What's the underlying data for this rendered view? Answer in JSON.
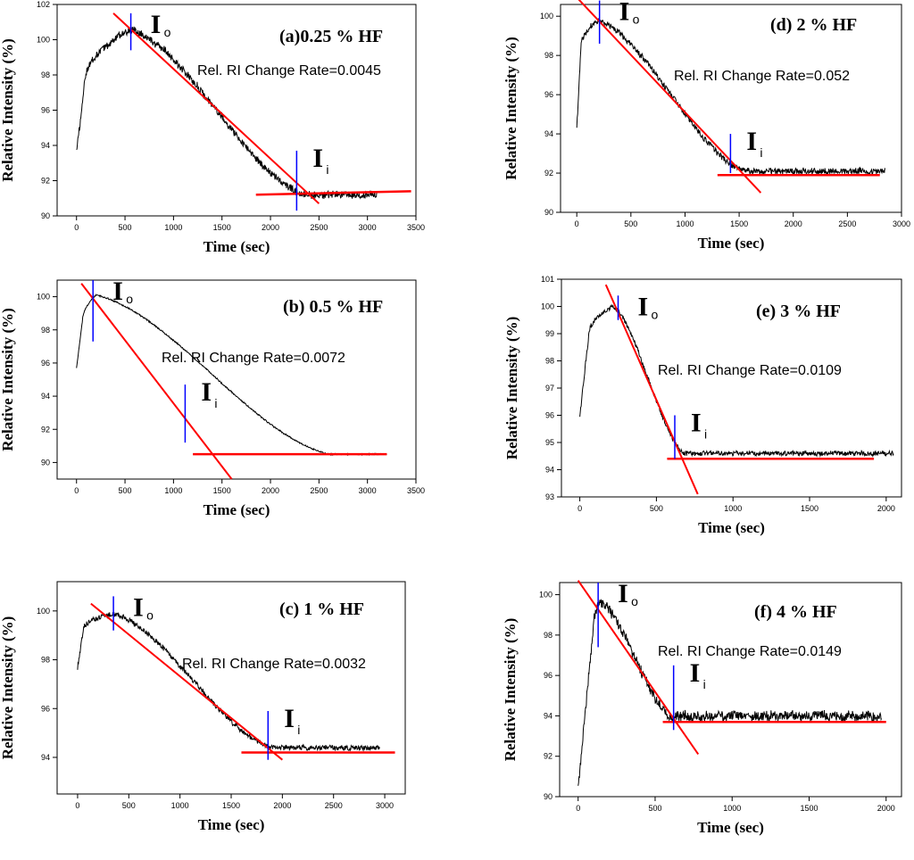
{
  "figure": {
    "xlabel": "Time (sec)",
    "ylabel": "Relative Intensity (%)",
    "rate_prefix": "Rel. RI Change Rate=",
    "marker_io": {
      "main": "I",
      "sub": "o"
    },
    "marker_ii": {
      "main": "I",
      "sub": "i"
    }
  },
  "colors": {
    "data": "#000000",
    "fit": "#ff0000",
    "marker": "#0000ff",
    "axis": "#000000"
  },
  "chart_data": [
    {
      "id": "a",
      "type": "line",
      "title": "(a)0.25 % HF",
      "rate": "0.0045",
      "xlabel": "Time (sec)",
      "ylabel": "Relative Intensity (%)",
      "xlim": [
        -200,
        3500
      ],
      "ylim": [
        90,
        102
      ],
      "xticks": [
        0,
        500,
        1000,
        1500,
        2000,
        2500,
        3000,
        3500
      ],
      "yticks": [
        90,
        92,
        94,
        96,
        98,
        100,
        102
      ],
      "profile": {
        "t_start": 0,
        "y_start": 93.6,
        "t_rise": 80,
        "y_rise": 97.5,
        "t_peak": 560,
        "y_peak": 100.6,
        "t_end_decay": 2350,
        "y_floor": 91.2,
        "t_end": 3100,
        "noise": 0.25
      },
      "io": {
        "t": 560,
        "y_low": 99.4,
        "y_high": 101.5
      },
      "ii": {
        "t": 2270,
        "y_low": 90.3,
        "y_high": 93.7
      },
      "slope_line": {
        "t1": 380,
        "y1": 101.5,
        "t2": 2500,
        "y2": 90.7
      },
      "floor_line": {
        "t1": 1850,
        "y1": 91.2,
        "t2": 3450,
        "y2": 91.4
      }
    },
    {
      "id": "b",
      "type": "line",
      "title": "(b) 0.5 % HF",
      "rate": "0.0072",
      "xlabel": "Time (sec)",
      "ylabel": "Relative Intensity (%)",
      "xlim": [
        -200,
        3500
      ],
      "ylim": [
        89,
        101
      ],
      "xticks": [
        0,
        500,
        1000,
        1500,
        2000,
        2500,
        3000,
        3500
      ],
      "yticks": [
        90,
        92,
        94,
        96,
        98,
        100
      ],
      "profile": {
        "t_start": 0,
        "y_start": 95.7,
        "t_rise": 60,
        "y_rise": 98.5,
        "t_peak": 200,
        "y_peak": 100.1,
        "t_end_decay": 2600,
        "y_floor": 90.5,
        "t_end": 3200,
        "noise": 0.05
      },
      "io": {
        "t": 170,
        "y_low": 97.3,
        "y_high": 101
      },
      "ii": {
        "t": 1120,
        "y_low": 91.2,
        "y_high": 94.7
      },
      "slope_line": {
        "t1": 50,
        "y1": 100.8,
        "t2": 1600,
        "y2": 89
      },
      "floor_line": {
        "t1": 1200,
        "y1": 90.5,
        "t2": 3200,
        "y2": 90.5
      }
    },
    {
      "id": "c",
      "type": "line",
      "title": "(c) 1 % HF",
      "rate": "0.0032",
      "xlabel": "Time (sec)",
      "ylabel": "Relative Intensity (%)",
      "xlim": [
        -200,
        3200
      ],
      "ylim": [
        92.5,
        101.2
      ],
      "xticks": [
        0,
        500,
        1000,
        1500,
        2000,
        2500,
        3000
      ],
      "yticks": [
        94,
        96,
        98,
        100
      ],
      "profile": {
        "t_start": 0,
        "y_start": 97.7,
        "t_rise": 60,
        "y_rise": 99.3,
        "t_peak": 350,
        "y_peak": 99.9,
        "t_end_decay": 1900,
        "y_floor": 94.4,
        "t_end": 2950,
        "noise": 0.12
      },
      "io": {
        "t": 350,
        "y_low": 99.2,
        "y_high": 100.6
      },
      "ii": {
        "t": 1860,
        "y_low": 93.9,
        "y_high": 95.9
      },
      "slope_line": {
        "t1": 130,
        "y1": 100.3,
        "t2": 2000,
        "y2": 93.9
      },
      "floor_line": {
        "t1": 1600,
        "y1": 94.2,
        "t2": 3100,
        "y2": 94.2
      }
    },
    {
      "id": "d",
      "type": "line",
      "title": "(d) 2 % HF",
      "rate": "0.052",
      "xlabel": "Time (sec)",
      "ylabel": "Relative Intensity (%)",
      "xlim": [
        -150,
        3000
      ],
      "ylim": [
        90,
        100.6
      ],
      "xticks": [
        0,
        500,
        1000,
        1500,
        2000,
        2500,
        3000
      ],
      "yticks": [
        90,
        92,
        94,
        96,
        98,
        100
      ],
      "profile": {
        "t_start": 0,
        "y_start": 94.3,
        "t_rise": 40,
        "y_rise": 98.5,
        "t_peak": 200,
        "y_peak": 99.8,
        "t_end_decay": 1550,
        "y_floor": 92.1,
        "t_end": 2850,
        "noise": 0.18
      },
      "io": {
        "t": 210,
        "y_low": 98.6,
        "y_high": 100.8
      },
      "ii": {
        "t": 1420,
        "y_low": 92.0,
        "y_high": 94.0
      },
      "slope_line": {
        "t1": 10,
        "y1": 100.9,
        "t2": 1700,
        "y2": 91
      },
      "floor_line": {
        "t1": 1300,
        "y1": 91.9,
        "t2": 2800,
        "y2": 91.9
      }
    },
    {
      "id": "e",
      "type": "line",
      "title": "(e) 3 % HF",
      "rate": "0.0109",
      "xlabel": "Time (sec)",
      "ylabel": "Relative Intensity (%)",
      "xlim": [
        -120,
        2100
      ],
      "ylim": [
        93,
        101
      ],
      "xticks": [
        0,
        500,
        1000,
        1500,
        2000
      ],
      "yticks": [
        93,
        94,
        95,
        96,
        97,
        98,
        99,
        100,
        101
      ],
      "profile": {
        "t_start": 0,
        "y_start": 96.0,
        "t_rise": 60,
        "y_rise": 99.0,
        "t_peak": 220,
        "y_peak": 100.0,
        "t_end_decay": 680,
        "y_floor": 94.6,
        "t_end": 2050,
        "noise": 0.1
      },
      "io": {
        "t": 250,
        "y_low": 99.5,
        "y_high": 100.4
      },
      "ii": {
        "t": 620,
        "y_low": 94.4,
        "y_high": 96.0
      },
      "slope_line": {
        "t1": 170,
        "y1": 100.8,
        "t2": 770,
        "y2": 93.1
      },
      "floor_line": {
        "t1": 570,
        "y1": 94.4,
        "t2": 1920,
        "y2": 94.4
      }
    },
    {
      "id": "f",
      "type": "line",
      "title": "(f) 4 % HF",
      "rate": "0.0149",
      "xlabel": "Time (sec)",
      "ylabel": "Relative Intensity (%)",
      "xlim": [
        -120,
        2100
      ],
      "ylim": [
        90,
        100.6
      ],
      "xticks": [
        0,
        500,
        1000,
        1500,
        2000
      ],
      "yticks": [
        90,
        92,
        94,
        96,
        98,
        100
      ],
      "profile": {
        "t_start": 0,
        "y_start": 90.4,
        "t_rise": 100,
        "y_rise": 98.5,
        "t_peak": 150,
        "y_peak": 99.6,
        "t_end_decay": 600,
        "y_floor": 94.0,
        "t_end": 1970,
        "noise": 0.3
      },
      "io": {
        "t": 130,
        "y_low": 97.4,
        "y_high": 100.6
      },
      "ii": {
        "t": 620,
        "y_low": 93.3,
        "y_high": 96.5
      },
      "slope_line": {
        "t1": 0,
        "y1": 100.7,
        "t2": 780,
        "y2": 92.1
      },
      "floor_line": {
        "t1": 550,
        "y1": 93.7,
        "t2": 2000,
        "y2": 93.7
      }
    }
  ]
}
